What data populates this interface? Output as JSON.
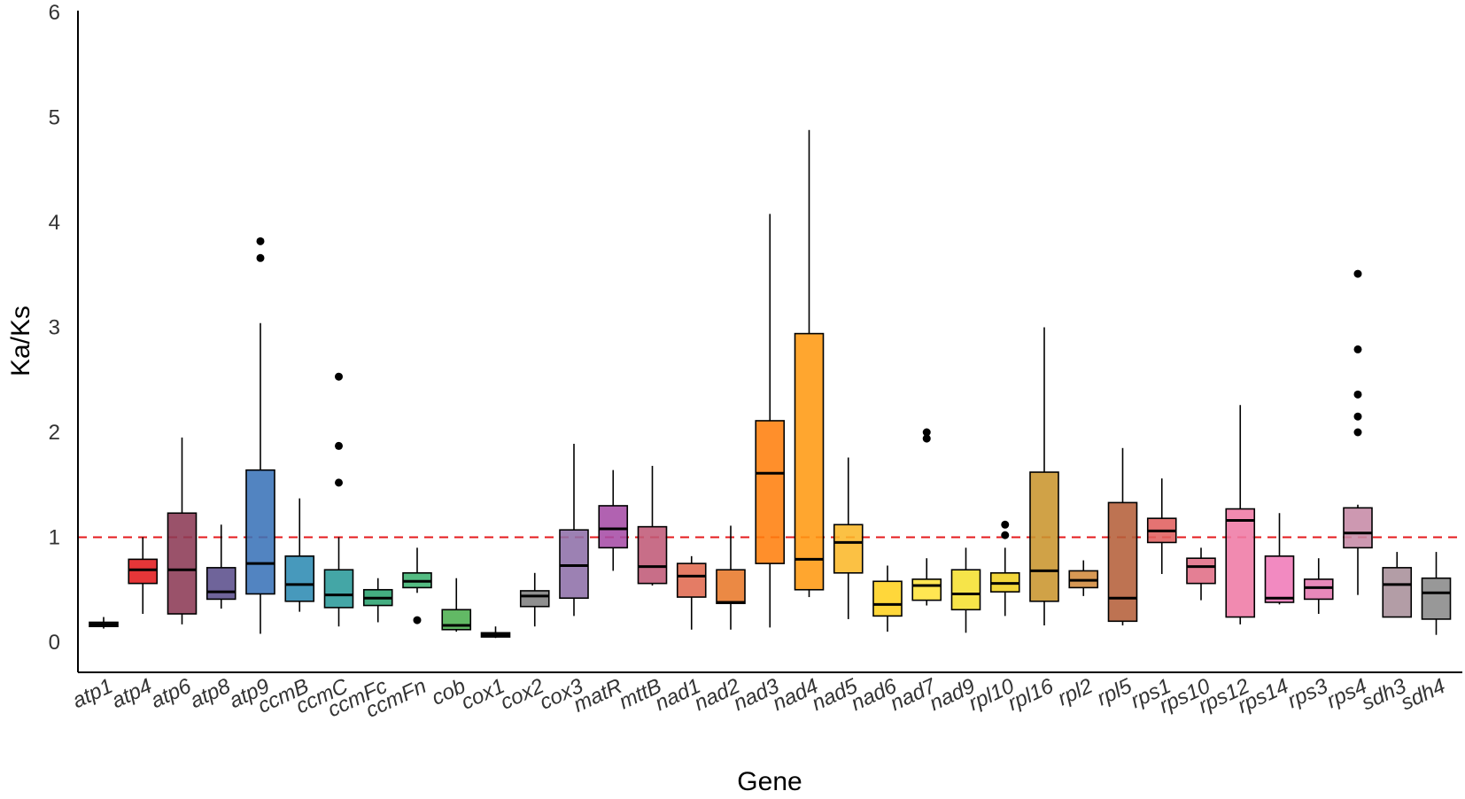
{
  "chart_data": {
    "type": "box",
    "title": "",
    "xlabel": "Gene",
    "ylabel": "Ka/Ks",
    "ylim": [
      0,
      6
    ],
    "yticks": [
      "0",
      "1",
      "2",
      "3",
      "4",
      "5",
      "6"
    ],
    "reference_line": {
      "value": 1,
      "color": "#e41a1c",
      "style": "dashed"
    },
    "categories": [
      "atp1",
      "atp4",
      "atp6",
      "atp8",
      "atp9",
      "ccmB",
      "ccmC",
      "ccmFc",
      "ccmFn",
      "cob",
      "cox1",
      "cox2",
      "cox3",
      "matR",
      "mttB",
      "nad1",
      "nad2",
      "nad3",
      "nad4",
      "nad5",
      "nad6",
      "nad7",
      "nad9",
      "rpl10",
      "rpl16",
      "rpl2",
      "rpl5",
      "rps1",
      "rps10",
      "rps12",
      "rps14",
      "rps3",
      "rps4",
      "sdh3",
      "sdh4"
    ],
    "boxes": [
      {
        "min": 0.13,
        "q1": 0.15,
        "median": 0.17,
        "q3": 0.19,
        "max": 0.24,
        "outliers": [],
        "color": "#111111"
      },
      {
        "min": 0.27,
        "q1": 0.56,
        "median": 0.69,
        "q3": 0.79,
        "max": 1.0,
        "outliers": [],
        "color": "#e31a1c"
      },
      {
        "min": 0.17,
        "q1": 0.27,
        "median": 0.69,
        "q3": 1.23,
        "max": 1.95,
        "outliers": [],
        "color": "#8c3a55"
      },
      {
        "min": 0.32,
        "q1": 0.41,
        "median": 0.48,
        "q3": 0.71,
        "max": 1.12,
        "outliers": [],
        "color": "#5b4f8c"
      },
      {
        "min": 0.08,
        "q1": 0.46,
        "median": 0.75,
        "q3": 1.64,
        "max": 3.04,
        "outliers": [
          3.66,
          3.82
        ],
        "color": "#3a73b8"
      },
      {
        "min": 0.29,
        "q1": 0.39,
        "median": 0.55,
        "q3": 0.82,
        "max": 1.37,
        "outliers": [],
        "color": "#2e8bb3"
      },
      {
        "min": 0.15,
        "q1": 0.33,
        "median": 0.45,
        "q3": 0.69,
        "max": 1.0,
        "outliers": [
          1.52,
          1.87,
          2.53
        ],
        "color": "#2a9a9a"
      },
      {
        "min": 0.19,
        "q1": 0.35,
        "median": 0.42,
        "q3": 0.5,
        "max": 0.61,
        "outliers": [],
        "color": "#2aa36f"
      },
      {
        "min": 0.47,
        "q1": 0.52,
        "median": 0.58,
        "q3": 0.66,
        "max": 0.9,
        "outliers": [
          0.21
        ],
        "color": "#3cb371"
      },
      {
        "min": 0.1,
        "q1": 0.12,
        "median": 0.16,
        "q3": 0.31,
        "max": 0.61,
        "outliers": [],
        "color": "#4caf50"
      },
      {
        "min": 0.04,
        "q1": 0.05,
        "median": 0.07,
        "q3": 0.09,
        "max": 0.15,
        "outliers": [],
        "color": "#111111"
      },
      {
        "min": 0.15,
        "q1": 0.34,
        "median": 0.44,
        "q3": 0.49,
        "max": 0.66,
        "outliers": [],
        "color": "#808080"
      },
      {
        "min": 0.25,
        "q1": 0.42,
        "median": 0.73,
        "q3": 1.07,
        "max": 1.89,
        "outliers": [],
        "color": "#8e6fa8"
      },
      {
        "min": 0.68,
        "q1": 0.9,
        "median": 1.08,
        "q3": 1.3,
        "max": 1.64,
        "outliers": [],
        "color": "#a64ca6"
      },
      {
        "min": 0.54,
        "q1": 0.56,
        "median": 0.72,
        "q3": 1.1,
        "max": 1.68,
        "outliers": [],
        "color": "#c05a78"
      },
      {
        "min": 0.12,
        "q1": 0.43,
        "median": 0.63,
        "q3": 0.75,
        "max": 0.82,
        "outliers": [],
        "color": "#e06a50"
      },
      {
        "min": 0.12,
        "q1": 0.37,
        "median": 0.38,
        "q3": 0.69,
        "max": 1.11,
        "outliers": [],
        "color": "#e8792a"
      },
      {
        "min": 0.14,
        "q1": 0.75,
        "median": 1.61,
        "q3": 2.11,
        "max": 4.08,
        "outliers": [],
        "color": "#ff7f0e"
      },
      {
        "min": 0.43,
        "q1": 0.5,
        "median": 0.79,
        "q3": 2.94,
        "max": 4.88,
        "outliers": [],
        "color": "#ff9a12"
      },
      {
        "min": 0.22,
        "q1": 0.66,
        "median": 0.95,
        "q3": 1.12,
        "max": 1.76,
        "outliers": [],
        "color": "#fbb82a"
      },
      {
        "min": 0.1,
        "q1": 0.25,
        "median": 0.36,
        "q3": 0.58,
        "max": 0.73,
        "outliers": [],
        "color": "#ffd21f"
      },
      {
        "min": 0.35,
        "q1": 0.4,
        "median": 0.54,
        "q3": 0.6,
        "max": 0.8,
        "outliers": [
          1.94,
          2.0
        ],
        "color": "#ffe23a"
      },
      {
        "min": 0.09,
        "q1": 0.31,
        "median": 0.46,
        "q3": 0.69,
        "max": 0.9,
        "outliers": [],
        "color": "#f5e030"
      },
      {
        "min": 0.25,
        "q1": 0.48,
        "median": 0.56,
        "q3": 0.66,
        "max": 0.9,
        "outliers": [
          1.02,
          1.12
        ],
        "color": "#f0d020"
      },
      {
        "min": 0.16,
        "q1": 0.39,
        "median": 0.68,
        "q3": 1.62,
        "max": 3.0,
        "outliers": [],
        "color": "#c9952e"
      },
      {
        "min": 0.44,
        "q1": 0.52,
        "median": 0.59,
        "q3": 0.68,
        "max": 0.78,
        "outliers": [],
        "color": "#d28a3c"
      },
      {
        "min": 0.16,
        "q1": 0.2,
        "median": 0.42,
        "q3": 1.33,
        "max": 1.85,
        "outliers": [],
        "color": "#b5603a"
      },
      {
        "min": 0.65,
        "q1": 0.95,
        "median": 1.06,
        "q3": 1.18,
        "max": 1.56,
        "outliers": [],
        "color": "#e0605e"
      },
      {
        "min": 0.4,
        "q1": 0.56,
        "median": 0.72,
        "q3": 0.8,
        "max": 0.9,
        "outliers": [],
        "color": "#e06d85"
      },
      {
        "min": 0.17,
        "q1": 0.24,
        "median": 1.16,
        "q3": 1.27,
        "max": 2.26,
        "outliers": [],
        "color": "#ef7aa5"
      },
      {
        "min": 0.36,
        "q1": 0.38,
        "median": 0.42,
        "q3": 0.82,
        "max": 1.23,
        "outliers": [],
        "color": "#f07ab8"
      },
      {
        "min": 0.27,
        "q1": 0.41,
        "median": 0.52,
        "q3": 0.6,
        "max": 0.8,
        "outliers": [],
        "color": "#e579b0"
      },
      {
        "min": 0.45,
        "q1": 0.9,
        "median": 1.04,
        "q3": 1.28,
        "max": 1.31,
        "outliers": [
          2.0,
          2.15,
          2.36,
          2.79,
          3.51
        ],
        "color": "#c68aa6"
      },
      {
        "min": 0.24,
        "q1": 0.24,
        "median": 0.55,
        "q3": 0.71,
        "max": 0.86,
        "outliers": [],
        "color": "#a8909a"
      },
      {
        "min": 0.07,
        "q1": 0.22,
        "median": 0.47,
        "q3": 0.61,
        "max": 0.86,
        "outliers": [],
        "color": "#8a8a8a"
      }
    ]
  }
}
